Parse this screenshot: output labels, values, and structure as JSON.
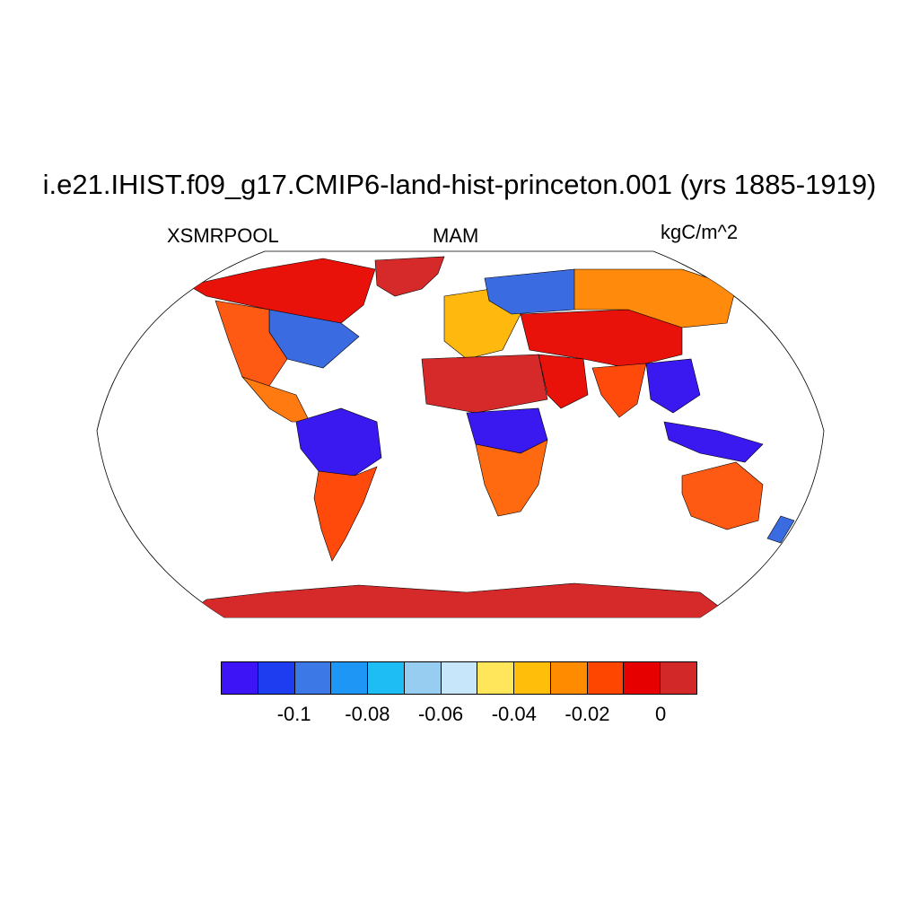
{
  "title": "i.e21.IHIST.f09_g17.CMIP6-land-hist-princeton.001 (yrs 1885-1919)",
  "left_label": "XSMRPOOL",
  "center_label": "MAM",
  "right_label": "kgC/m^2",
  "map": {
    "projection": "Robinson",
    "regions": [
      {
        "name": "Greenland",
        "color": "#d62a2a"
      },
      {
        "name": "Canada",
        "color": "#e8120a"
      },
      {
        "name": "Eastern North America",
        "color": "#3a6be0"
      },
      {
        "name": "Western United States",
        "color": "#ff5a14"
      },
      {
        "name": "Mexico",
        "color": "#ff7a10"
      },
      {
        "name": "Amazon",
        "color": "#3a18f0"
      },
      {
        "name": "Southern South America",
        "color": "#ff4a0c"
      },
      {
        "name": "Europe",
        "color": "#ffb80e"
      },
      {
        "name": "Northern Eurasia",
        "color": "#3a6be0"
      },
      {
        "name": "Sahara",
        "color": "#d62a2a"
      },
      {
        "name": "Arabia",
        "color": "#e8120a"
      },
      {
        "name": "Central Asia",
        "color": "#e8120a"
      },
      {
        "name": "Siberia",
        "color": "#ff8a0c"
      },
      {
        "name": "Central Africa",
        "color": "#3a18f0"
      },
      {
        "name": "Southern Africa",
        "color": "#ff6a10"
      },
      {
        "name": "India",
        "color": "#ff4a0c"
      },
      {
        "name": "Southeast Asia",
        "color": "#3a18f0"
      },
      {
        "name": "Indonesia",
        "color": "#3a18f0"
      },
      {
        "name": "Australia",
        "color": "#ff5a14"
      },
      {
        "name": "New Zealand",
        "color": "#3a6be0"
      },
      {
        "name": "Antarctica",
        "color": "#d62a2a"
      }
    ]
  },
  "colorbar": {
    "colors": [
      "#3c14f5",
      "#1e3cf0",
      "#3c78e6",
      "#1e96f5",
      "#1ebef5",
      "#96cdf0",
      "#c8e6fa",
      "#ffe65a",
      "#ffbe0a",
      "#ff8c00",
      "#ff4600",
      "#e60000",
      "#d22828"
    ],
    "tick_labels": [
      {
        "text": "-0.1",
        "index": 2
      },
      {
        "text": "-0.08",
        "index": 4
      },
      {
        "text": "-0.06",
        "index": 6
      },
      {
        "text": "-0.04",
        "index": 8
      },
      {
        "text": "-0.02",
        "index": 10
      },
      {
        "text": "0",
        "index": 12
      }
    ]
  }
}
